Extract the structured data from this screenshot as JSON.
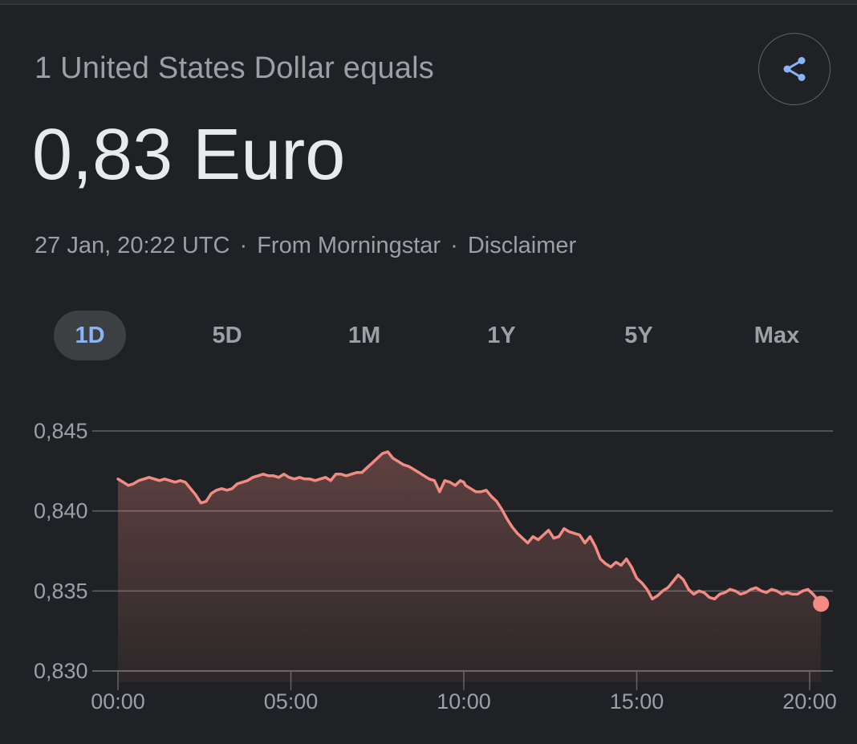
{
  "header": {
    "subtitle": "1 United States Dollar equals",
    "value": "0,83 Euro",
    "share_icon": "share-icon"
  },
  "meta": {
    "timestamp": "27 Jan, 20:22 UTC",
    "separator": "·",
    "source": "From Morningstar",
    "disclaimer": "Disclaimer"
  },
  "ranges": [
    {
      "label": "1D",
      "active": true
    },
    {
      "label": "5D",
      "active": false
    },
    {
      "label": "1M",
      "active": false
    },
    {
      "label": "1Y",
      "active": false
    },
    {
      "label": "5Y",
      "active": false
    },
    {
      "label": "Max",
      "active": false
    }
  ],
  "colors": {
    "line": "#f28b82",
    "active_range": "#8ab4f8",
    "grid": "#5f6368",
    "background": "#202124"
  },
  "chart_data": {
    "type": "area",
    "title": "",
    "xlabel": "",
    "ylabel": "",
    "ylim": [
      0.83,
      0.845
    ],
    "y_ticks": [
      "0,845",
      "0,840",
      "0,835",
      "0,830"
    ],
    "y_tick_values": [
      0.845,
      0.84,
      0.835,
      0.83
    ],
    "x_ticks": [
      "00:00",
      "05:00",
      "10:00",
      "15:00",
      "20:00"
    ],
    "x_tick_values": [
      0,
      5,
      10,
      15,
      20
    ],
    "xlim": [
      0,
      20.33
    ],
    "grid": true,
    "series": [
      {
        "x": [
          0.0,
          0.15,
          0.3,
          0.45,
          0.6,
          0.75,
          0.9,
          1.05,
          1.2,
          1.35,
          1.5,
          1.65,
          1.8,
          1.95,
          2.1,
          2.25,
          2.4,
          2.55,
          2.7,
          2.85,
          3.0,
          3.15,
          3.3,
          3.45,
          3.6,
          3.75,
          3.9,
          4.05,
          4.2,
          4.35,
          4.5,
          4.65,
          4.8,
          4.95,
          5.1,
          5.25,
          5.4,
          5.55,
          5.7,
          5.85,
          6.0,
          6.15,
          6.3,
          6.45,
          6.6,
          6.75,
          6.9,
          7.05,
          7.2,
          7.35,
          7.5,
          7.65,
          7.8,
          7.95,
          8.1,
          8.25,
          8.4,
          8.55,
          8.7,
          8.85,
          9.0,
          9.15,
          9.3,
          9.45,
          9.6,
          9.75,
          9.9,
          10.0,
          10.05,
          10.2,
          10.35,
          10.5,
          10.65,
          10.8,
          10.95,
          11.1,
          11.25,
          11.4,
          11.55,
          11.7,
          11.85,
          12.0,
          12.15,
          12.3,
          12.45,
          12.6,
          12.75,
          12.9,
          13.05,
          13.2,
          13.35,
          13.5,
          13.65,
          13.8,
          13.95,
          14.1,
          14.25,
          14.4,
          14.55,
          14.7,
          14.85,
          15.0,
          15.15,
          15.3,
          15.45,
          15.6,
          15.75,
          15.9,
          16.05,
          16.2,
          16.35,
          16.5,
          16.65,
          16.8,
          16.95,
          17.1,
          17.25,
          17.4,
          17.55,
          17.7,
          17.85,
          18.0,
          18.15,
          18.3,
          18.45,
          18.6,
          18.75,
          18.9,
          19.05,
          19.2,
          19.35,
          19.5,
          19.65,
          19.8,
          19.95,
          20.1,
          20.33
        ],
        "values": [
          0.842,
          0.8418,
          0.8416,
          0.8417,
          0.8419,
          0.842,
          0.8421,
          0.842,
          0.8419,
          0.842,
          0.8419,
          0.8418,
          0.8419,
          0.8418,
          0.8414,
          0.841,
          0.8405,
          0.8406,
          0.8411,
          0.8413,
          0.8414,
          0.8413,
          0.8414,
          0.8417,
          0.8418,
          0.8419,
          0.8421,
          0.8422,
          0.8423,
          0.8422,
          0.8422,
          0.8421,
          0.8423,
          0.8421,
          0.842,
          0.8421,
          0.842,
          0.842,
          0.8419,
          0.842,
          0.8421,
          0.8419,
          0.8423,
          0.8423,
          0.8422,
          0.8423,
          0.8424,
          0.8424,
          0.8427,
          0.843,
          0.8433,
          0.8436,
          0.8437,
          0.8433,
          0.8431,
          0.8429,
          0.8428,
          0.8426,
          0.8424,
          0.8422,
          0.842,
          0.8419,
          0.8412,
          0.8419,
          0.8418,
          0.8416,
          0.8419,
          0.8418,
          0.8416,
          0.8414,
          0.8412,
          0.8412,
          0.8413,
          0.8409,
          0.8406,
          0.8401,
          0.8395,
          0.839,
          0.8386,
          0.8383,
          0.838,
          0.8384,
          0.8382,
          0.8385,
          0.8388,
          0.8383,
          0.8384,
          0.8389,
          0.8387,
          0.8386,
          0.8385,
          0.838,
          0.8384,
          0.8378,
          0.837,
          0.8367,
          0.8365,
          0.8368,
          0.8366,
          0.837,
          0.8365,
          0.8358,
          0.8355,
          0.8351,
          0.8345,
          0.8347,
          0.835,
          0.8352,
          0.8356,
          0.836,
          0.8357,
          0.8351,
          0.8348,
          0.835,
          0.8349,
          0.8346,
          0.8345,
          0.8348,
          0.8349,
          0.8351,
          0.835,
          0.8348,
          0.8349,
          0.8351,
          0.8352,
          0.835,
          0.8349,
          0.8351,
          0.835,
          0.8348,
          0.8349,
          0.8348,
          0.8348,
          0.835,
          0.8351,
          0.8348,
          0.8342
        ]
      }
    ]
  }
}
